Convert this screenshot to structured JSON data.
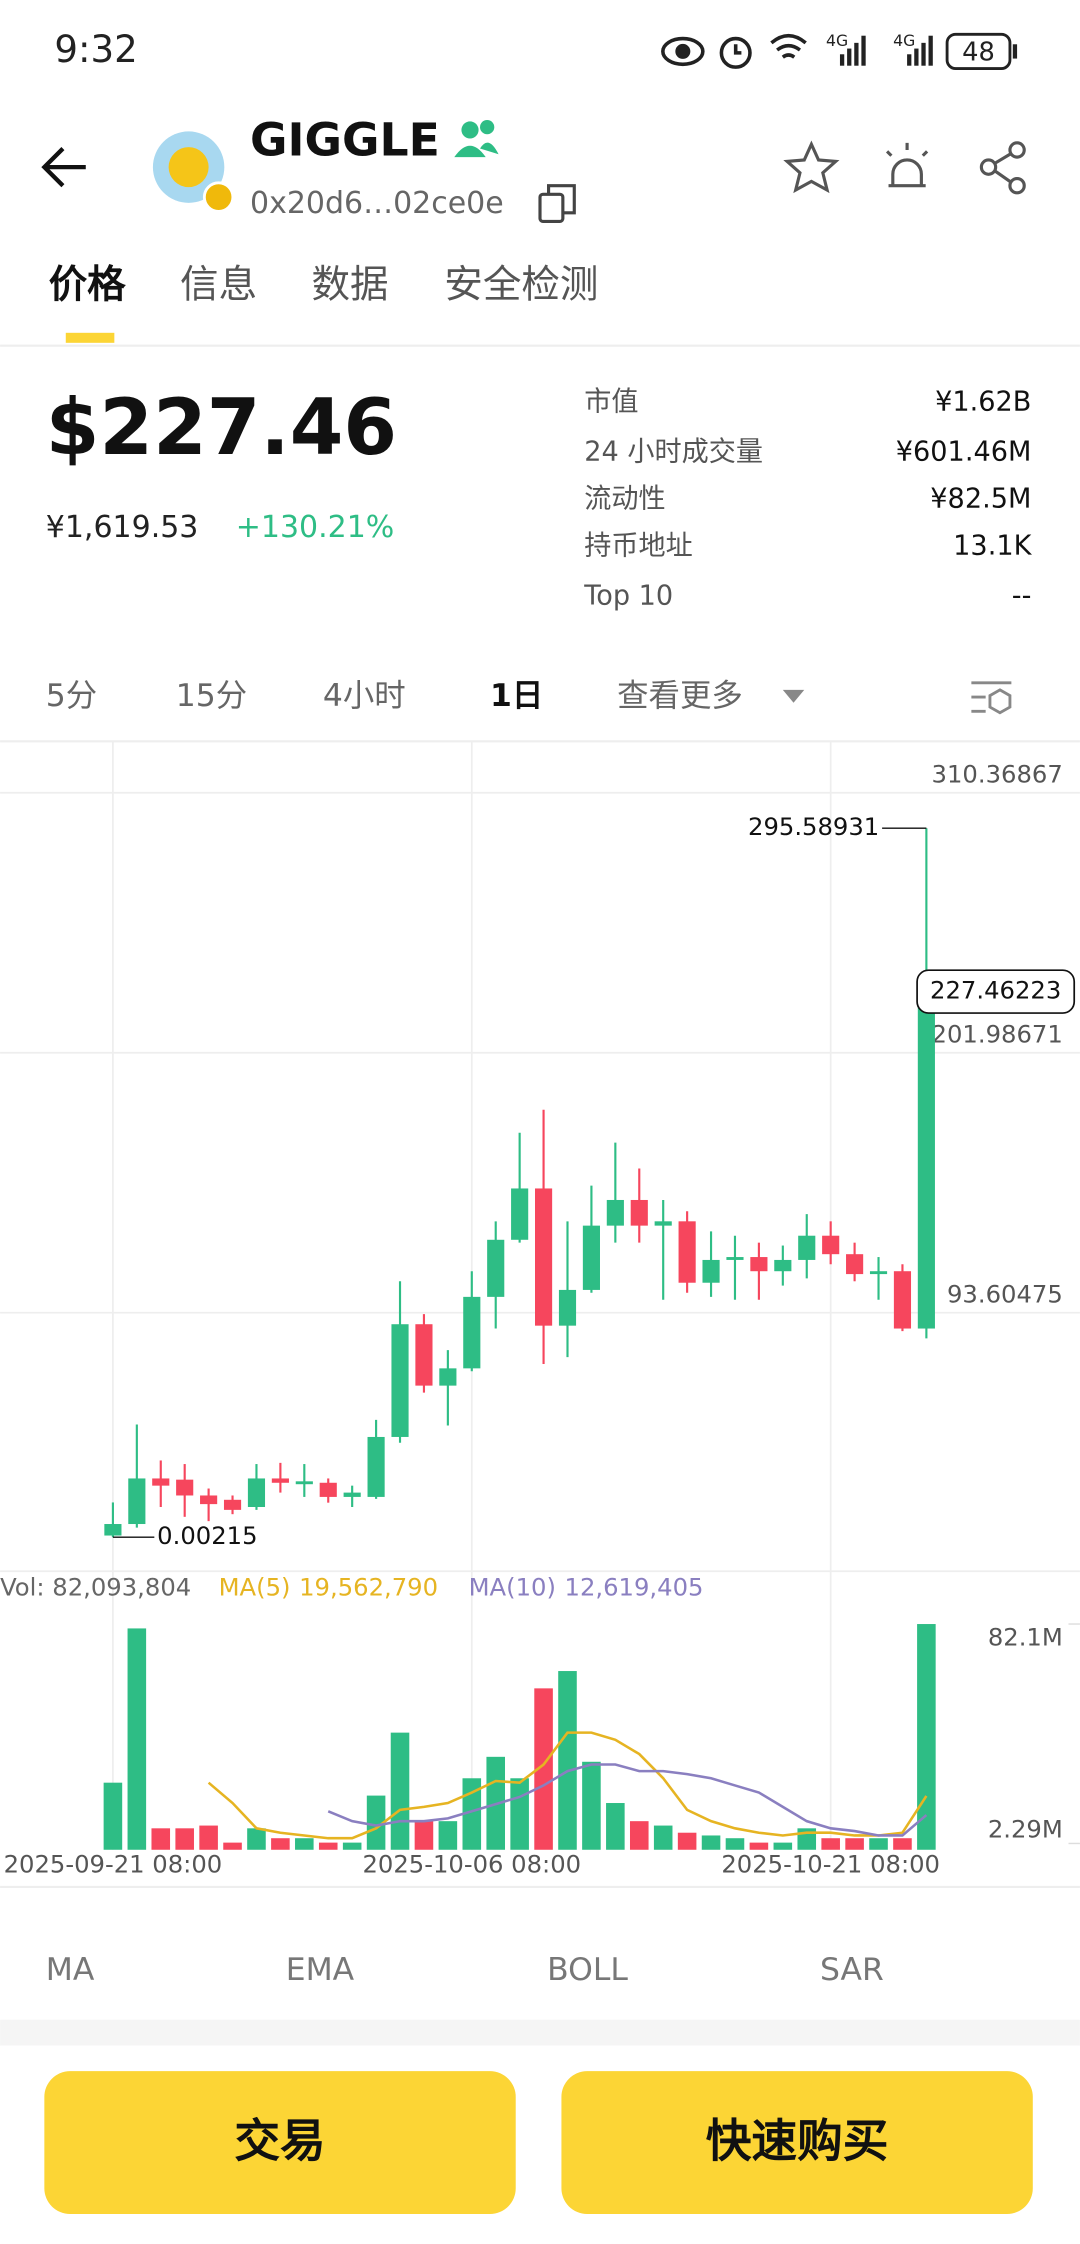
{
  "status_bar": {
    "time": "9:32",
    "network": [
      "4G",
      "4G"
    ],
    "battery": "48"
  },
  "header": {
    "title": "GIGGLE",
    "address": "0x20d6…02ce0e"
  },
  "tabs": [
    "价格",
    "信息",
    "数据",
    "安全检测"
  ],
  "price_summary": {
    "price": "$227.46",
    "local_price": "¥1,619.53",
    "change": "+130.21%"
  },
  "stats": [
    [
      "市值",
      "¥1.62B"
    ],
    [
      "24 小时成交量",
      "¥601.46M"
    ],
    [
      "流动性",
      "¥82.5M"
    ],
    [
      "持币地址",
      "13.1K"
    ],
    [
      "Top 10",
      "--"
    ]
  ],
  "intervals": [
    "5分",
    "15分",
    "4小时",
    "1日",
    "查看更多"
  ],
  "chart_data": {
    "type": "candlestick",
    "categories": [
      "2025-09-21 08:00",
      null,
      null,
      null,
      null,
      null,
      null,
      null,
      null,
      null,
      null,
      null,
      null,
      null,
      null,
      "2025-10-06 08:00",
      null,
      null,
      null,
      null,
      null,
      null,
      null,
      null,
      null,
      null,
      null,
      null,
      null,
      null,
      "2025-10-21 08:00",
      null,
      null,
      null,
      null
    ],
    "open": [
      0.7,
      5.5,
      24.5,
      24,
      17.4,
      15.6,
      12.6,
      24.5,
      22.1,
      22.7,
      16.8,
      16.8,
      41.8,
      88.8,
      63.2,
      70.4,
      100.2,
      124,
      145.4,
      88.2,
      103.1,
      129.9,
      140.6,
      129.9,
      131.7,
      106.1,
      115.6,
      116.8,
      110.9,
      115.6,
      125.7,
      118,
      109.7,
      110.9,
      87
    ],
    "high": [
      14.5,
      47,
      32,
      30.5,
      20.3,
      17.4,
      30.5,
      31,
      30.5,
      24.5,
      21.5,
      48.9,
      106.7,
      93,
      78,
      110.9,
      131.7,
      168.6,
      178.2,
      131.7,
      146.6,
      164.5,
      153.7,
      140.6,
      135.9,
      127.5,
      125.7,
      122.8,
      121.6,
      134.7,
      131.7,
      122.8,
      116.8,
      113.8,
      295.58931
    ],
    "low": [
      0.00215,
      4,
      12.6,
      8.5,
      6.7,
      9.6,
      11.4,
      18.6,
      16.8,
      14.4,
      12.6,
      16,
      39.4,
      60.3,
      46.6,
      69.2,
      87,
      122.8,
      72.2,
      75.1,
      101.9,
      122.8,
      122.8,
      99,
      101.9,
      100.2,
      99,
      99,
      104.9,
      107.9,
      113.8,
      106.7,
      99,
      85.9,
      82.9
    ],
    "close": [
      5.5,
      24.5,
      21.5,
      17.4,
      13.8,
      11.4,
      24.5,
      22.7,
      23.3,
      16.8,
      18.6,
      41.8,
      88.8,
      63.2,
      70.4,
      100.2,
      124,
      145.4,
      88.2,
      103.1,
      129.9,
      140.6,
      129.9,
      131.7,
      106.1,
      115.6,
      116.8,
      110.9,
      115.6,
      125.7,
      118,
      109.7,
      110.9,
      87,
      227.46223
    ],
    "up_color": "#2ebd85",
    "down_color": "#f6465d",
    "ylim": [
      -14.18,
      331.81
    ],
    "yticks": [
      310.36867,
      201.98671,
      93.60475
    ],
    "grid": true,
    "volume": {
      "legend": "Vol: 82,093,804",
      "values": [
        24400000,
        80500000,
        7800000,
        7800000,
        8800000,
        2600000,
        7800000,
        4200000,
        4200000,
        2600000,
        2600000,
        19700000,
        42600000,
        10400000,
        10400000,
        26000000,
        33800000,
        26000000,
        58700000,
        65000000,
        32000000,
        17000000,
        10400000,
        8800000,
        6200000,
        5200000,
        4200000,
        2600000,
        2600000,
        7800000,
        4200000,
        4200000,
        4200000,
        4200000,
        82093804
      ],
      "ylim": [
        0,
        101300000
      ],
      "yticks": [
        {
          "value": 82100000,
          "label": "82.1M"
        },
        {
          "value": 2290000,
          "label": "2.29M"
        }
      ],
      "series": [
        {
          "name": "MA(5)",
          "last_label": "19,562,790",
          "color": "#e6b422",
          "values": [
            null,
            null,
            null,
            null,
            24400000,
            17000000,
            7800000,
            6200000,
            5200000,
            4200000,
            4200000,
            7800000,
            14500000,
            15600000,
            17000000,
            20800000,
            25000000,
            24400000,
            31000000,
            42600000,
            42600000,
            40000000,
            34800000,
            26000000,
            14500000,
            10400000,
            7800000,
            6200000,
            5200000,
            6200000,
            6200000,
            5200000,
            5200000,
            6200000,
            19562790
          ]
        },
        {
          "name": "MA(10)",
          "last_label": "12,619,405",
          "color": "#8a7fc0",
          "values": [
            null,
            null,
            null,
            null,
            null,
            null,
            null,
            null,
            null,
            14000000,
            10400000,
            8800000,
            10400000,
            10400000,
            11400000,
            14000000,
            16600000,
            19200000,
            23400000,
            28600000,
            31000000,
            31000000,
            28600000,
            28600000,
            27500000,
            26000000,
            23400000,
            20800000,
            15600000,
            10400000,
            7800000,
            6800000,
            5200000,
            5200000,
            12619405
          ]
        }
      ]
    }
  },
  "indicators": [
    "MA",
    "EMA",
    "BOLL",
    "SAR"
  ],
  "buttons": [
    "交易",
    "快速购买"
  ]
}
